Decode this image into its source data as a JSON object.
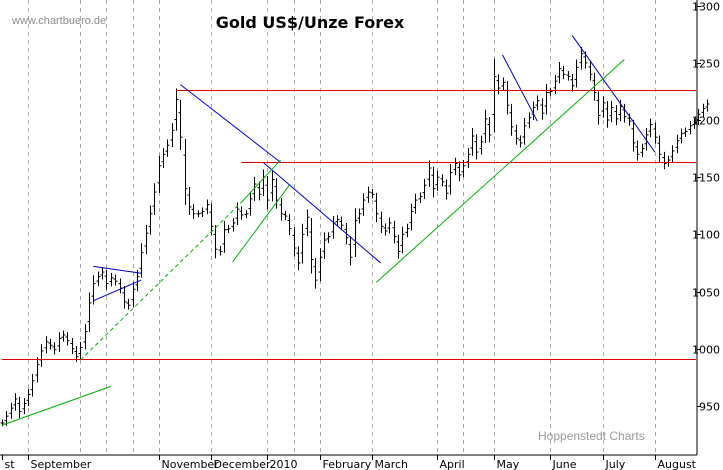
{
  "chart_data": {
    "type": "ohlc",
    "title": "Gold US$/Unze Forex",
    "watermark": "www.chartbuero.de",
    "source": "Hoppenstedt Charts",
    "xlabel": "",
    "ylabel": "",
    "ylim": [
      907,
      1305
    ],
    "y_axis_position": "right",
    "y_ticks": [
      950,
      1000,
      1050,
      1100,
      1150,
      1200,
      1250,
      1300
    ],
    "month_labels": [
      {
        "label": "st",
        "pos": 0
      },
      {
        "label": "September",
        "pos": 6
      },
      {
        "label": "November",
        "pos": 36
      },
      {
        "label": "December",
        "pos": 48
      },
      {
        "label": "2010",
        "pos": 61
      },
      {
        "label": "February",
        "pos": 73
      },
      {
        "label": "March",
        "pos": 85
      },
      {
        "label": "April",
        "pos": 100
      },
      {
        "label": "May",
        "pos": 113
      },
      {
        "label": "June",
        "pos": 126
      },
      {
        "label": "July",
        "pos": 138
      },
      {
        "label": "August",
        "pos": 150
      }
    ],
    "vertical_gridlines_at": [
      6,
      18,
      24,
      30,
      36,
      48,
      61,
      67,
      73,
      85,
      100,
      106,
      113,
      126,
      138,
      150
    ],
    "x_count": 160,
    "closes": [
      935,
      941,
      948,
      956,
      945,
      952,
      960,
      972,
      986,
      998,
      1006,
      1003,
      999,
      1009,
      1012,
      1007,
      1000,
      993,
      1001,
      1015,
      1040,
      1057,
      1063,
      1067,
      1057,
      1062,
      1059,
      1053,
      1041,
      1038,
      1052,
      1063,
      1084,
      1101,
      1118,
      1137,
      1160,
      1170,
      1178,
      1191,
      1218,
      1185,
      1140,
      1124,
      1118,
      1118,
      1120,
      1126,
      1107,
      1087,
      1085,
      1104,
      1105,
      1110,
      1122,
      1117,
      1118,
      1131,
      1144,
      1135,
      1150,
      1130,
      1148,
      1130,
      1118,
      1116,
      1105,
      1088,
      1075,
      1100,
      1115,
      1078,
      1060,
      1080,
      1095,
      1098,
      1110,
      1113,
      1108,
      1097,
      1080,
      1112,
      1118,
      1130,
      1137,
      1135,
      1118,
      1107,
      1103,
      1110,
      1098,
      1085,
      1100,
      1105,
      1120,
      1130,
      1133,
      1143,
      1158,
      1140,
      1150,
      1146,
      1136,
      1154,
      1162,
      1152,
      1160,
      1170,
      1186,
      1172,
      1181,
      1201,
      1187,
      1238,
      1228,
      1233,
      1213,
      1194,
      1184,
      1180,
      1195,
      1202,
      1211,
      1217,
      1206,
      1224,
      1225,
      1234,
      1245,
      1240,
      1238,
      1230,
      1246,
      1258,
      1250,
      1240,
      1224,
      1204,
      1215,
      1200,
      1211,
      1201,
      1212,
      1203,
      1199,
      1180,
      1170,
      1175,
      1187,
      1196,
      1185,
      1170,
      1162,
      1165,
      1173,
      1182,
      1188,
      1190,
      1195,
      1198,
      1205,
      1210,
      1214
    ],
    "horizontal_lines": [
      {
        "y": 1226,
        "x_start": 40,
        "x_end": 160,
        "color": "#e00000"
      },
      {
        "y": 1163,
        "x_start": 55,
        "x_end": 160,
        "color": "#e00000"
      },
      {
        "y": 991,
        "x_start": 0,
        "x_end": 160,
        "color": "#e00000"
      }
    ],
    "trend_lines": [
      {
        "from": [
          41,
          1231
        ],
        "to": [
          64,
          1163
        ],
        "color": "#0000cc",
        "style": "solid"
      },
      {
        "from": [
          60,
          1163
        ],
        "to": [
          87,
          1075
        ],
        "color": "#0000cc",
        "style": "solid"
      },
      {
        "from": [
          115,
          1257
        ],
        "to": [
          123,
          1199
        ],
        "color": "#0000cc",
        "style": "solid"
      },
      {
        "from": [
          131,
          1274
        ],
        "to": [
          150,
          1172
        ],
        "color": "#0000cc",
        "style": "solid"
      },
      {
        "from": [
          21,
          1072
        ],
        "to": [
          32,
          1066
        ],
        "color": "#0000cc",
        "style": "solid"
      },
      {
        "from": [
          21,
          1042
        ],
        "to": [
          32,
          1060
        ],
        "color": "#0000cc",
        "style": "solid"
      },
      {
        "from": [
          0,
          933
        ],
        "to": [
          25,
          967
        ],
        "color": "#00b000",
        "style": "solid"
      },
      {
        "from": [
          18,
          990
        ],
        "to": [
          55,
          1128
        ],
        "color": "#00b000",
        "style": "dashed"
      },
      {
        "from": [
          55,
          1128
        ],
        "to": [
          64,
          1165
        ],
        "color": "#00b000",
        "style": "solid"
      },
      {
        "from": [
          53,
          1076
        ],
        "to": [
          66,
          1143
        ],
        "color": "#00b000",
        "style": "solid"
      },
      {
        "from": [
          86,
          1058
        ],
        "to": [
          143,
          1253
        ],
        "color": "#00b000",
        "style": "solid"
      }
    ]
  }
}
